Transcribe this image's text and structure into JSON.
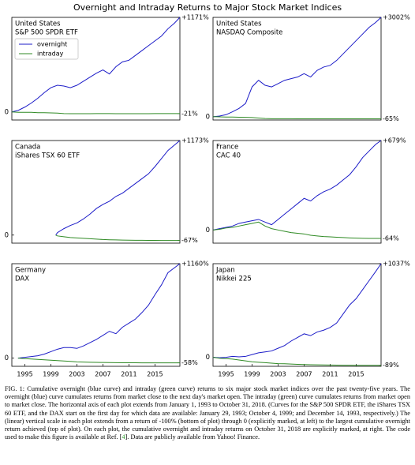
{
  "title": "Overnight and Intraday Returns to Major Stock Market Indices",
  "chart_data": [
    {
      "type": "line",
      "title": "United States",
      "subtitle": "S&P 500 SPDR ETF",
      "legend": "upper left",
      "x": [
        1993,
        1994,
        1995,
        1996,
        1997,
        1998,
        1999,
        2000,
        2001,
        2002,
        2003,
        2004,
        2005,
        2006,
        2007,
        2008,
        2009,
        2010,
        2011,
        2012,
        2013,
        2014,
        2015,
        2016,
        2017,
        2018,
        2018.83
      ],
      "series": [
        {
          "name": "overnight",
          "color": "#1c1cc8",
          "values": [
            0,
            20,
            60,
            110,
            170,
            240,
            300,
            330,
            320,
            300,
            330,
            380,
            430,
            480,
            520,
            470,
            560,
            620,
            640,
            700,
            760,
            820,
            880,
            940,
            1030,
            1100,
            1171
          ]
        },
        {
          "name": "intraday",
          "color": "#2f8a24",
          "values": [
            0,
            -5,
            -5,
            -5,
            -10,
            -10,
            -12,
            -15,
            -20,
            -22,
            -22,
            -22,
            -22,
            -20,
            -20,
            -20,
            -22,
            -22,
            -22,
            -22,
            -22,
            -22,
            -21,
            -20,
            -20,
            -20,
            -21
          ]
        }
      ],
      "xlim": [
        1993,
        2018.83
      ],
      "ylim": [
        -100,
        1171
      ],
      "yticks": [
        0
      ],
      "y2lim": [
        -100,
        1171
      ],
      "y2ticks": [
        {
          "value": 1171,
          "label": "+1171%"
        },
        {
          "value": -21,
          "label": "-21%"
        }
      ]
    },
    {
      "type": "line",
      "title": "United States",
      "subtitle": "NASDAQ Composite",
      "x": [
        1993,
        1994,
        1995,
        1996,
        1997,
        1998,
        1999,
        2000,
        2001,
        2002,
        2003,
        2004,
        2005,
        2006,
        2007,
        2008,
        2009,
        2010,
        2011,
        2012,
        2013,
        2014,
        2015,
        2016,
        2017,
        2018,
        2018.83
      ],
      "series": [
        {
          "name": "overnight",
          "color": "#1c1cc8",
          "values": [
            0,
            20,
            60,
            150,
            250,
            400,
            900,
            1100,
            950,
            900,
            1000,
            1100,
            1150,
            1200,
            1300,
            1200,
            1400,
            1500,
            1550,
            1700,
            1900,
            2100,
            2300,
            2500,
            2700,
            2850,
            3002
          ]
        },
        {
          "name": "intraday",
          "color": "#2f8a24",
          "values": [
            0,
            -5,
            -10,
            -10,
            -15,
            -20,
            -25,
            -40,
            -55,
            -60,
            -60,
            -62,
            -62,
            -63,
            -63,
            -64,
            -64,
            -64,
            -64,
            -65,
            -65,
            -65,
            -65,
            -65,
            -65,
            -65,
            -65
          ]
        }
      ],
      "xlim": [
        1993,
        2018.83
      ],
      "ylim": [
        -100,
        3002
      ],
      "yticks": [
        0
      ],
      "y2lim": [
        -100,
        3002
      ],
      "y2ticks": [
        {
          "value": 3002,
          "label": "+3002%"
        },
        {
          "value": -65,
          "label": "-65%"
        }
      ]
    },
    {
      "type": "line",
      "title": "Canada",
      "subtitle": "iShares TSX 60 ETF",
      "x": [
        1999.75,
        2000,
        2001,
        2002,
        2003,
        2004,
        2005,
        2006,
        2007,
        2008,
        2009,
        2010,
        2011,
        2012,
        2013,
        2014,
        2015,
        2016,
        2017,
        2018.83
      ],
      "series": [
        {
          "name": "overnight",
          "color": "#1c1cc8",
          "values": [
            0,
            30,
            80,
            120,
            150,
            200,
            260,
            330,
            380,
            420,
            480,
            520,
            580,
            640,
            700,
            760,
            850,
            950,
            1050,
            1173
          ]
        },
        {
          "name": "intraday",
          "color": "#2f8a24",
          "values": [
            0,
            -10,
            -20,
            -30,
            -35,
            -40,
            -45,
            -50,
            -55,
            -58,
            -60,
            -62,
            -63,
            -64,
            -65,
            -66,
            -66,
            -67,
            -67,
            -67
          ]
        }
      ],
      "xlim": [
        1993,
        2018.83
      ],
      "ylim": [
        -100,
        1173
      ],
      "yticks": [
        0
      ],
      "y2lim": [
        -100,
        1173
      ],
      "y2ticks": [
        {
          "value": 1173,
          "label": "+1173%"
        },
        {
          "value": -67,
          "label": "-67%"
        }
      ]
    },
    {
      "type": "line",
      "title": "France",
      "subtitle": "CAC 40",
      "x": [
        1993,
        1994,
        1995,
        1996,
        1997,
        1998,
        1999,
        2000,
        2001,
        2002,
        2003,
        2004,
        2005,
        2006,
        2007,
        2008,
        2009,
        2010,
        2011,
        2012,
        2013,
        2014,
        2015,
        2016,
        2017,
        2018,
        2018.83
      ],
      "series": [
        {
          "name": "overnight",
          "color": "#1c1cc8",
          "values": [
            0,
            10,
            20,
            30,
            50,
            60,
            70,
            80,
            60,
            40,
            80,
            120,
            160,
            200,
            240,
            220,
            260,
            290,
            310,
            340,
            380,
            420,
            480,
            550,
            600,
            650,
            679
          ]
        },
        {
          "name": "intraday",
          "color": "#2f8a24",
          "values": [
            0,
            5,
            15,
            20,
            30,
            40,
            50,
            60,
            30,
            10,
            0,
            -10,
            -20,
            -25,
            -30,
            -40,
            -45,
            -50,
            -52,
            -55,
            -57,
            -60,
            -62,
            -63,
            -64,
            -64,
            -64
          ]
        }
      ],
      "xlim": [
        1993,
        2018.83
      ],
      "ylim": [
        -100,
        679
      ],
      "yticks": [
        0
      ],
      "y2lim": [
        -100,
        679
      ],
      "y2ticks": [
        {
          "value": 679,
          "label": "+679%"
        },
        {
          "value": -64,
          "label": "-64%"
        }
      ]
    },
    {
      "type": "line",
      "title": "Germany",
      "subtitle": "DAX",
      "x": [
        1993.95,
        1995,
        1996,
        1997,
        1998,
        1999,
        2000,
        2001,
        2002,
        2003,
        2004,
        2005,
        2006,
        2007,
        2008,
        2009,
        2010,
        2011,
        2012,
        2013,
        2014,
        2015,
        2016,
        2017,
        2018.83
      ],
      "series": [
        {
          "name": "overnight",
          "color": "#1c1cc8",
          "values": [
            0,
            10,
            20,
            30,
            50,
            80,
            110,
            130,
            130,
            120,
            150,
            190,
            230,
            280,
            330,
            300,
            380,
            430,
            480,
            560,
            650,
            780,
            900,
            1050,
            1160
          ]
        },
        {
          "name": "intraday",
          "color": "#2f8a24",
          "values": [
            0,
            -5,
            -10,
            -15,
            -20,
            -25,
            -30,
            -35,
            -40,
            -45,
            -48,
            -50,
            -52,
            -53,
            -54,
            -55,
            -56,
            -57,
            -57,
            -58,
            -58,
            -58,
            -58,
            -58,
            -58
          ]
        }
      ],
      "xlim": [
        1993,
        2018.83
      ],
      "ylim": [
        -100,
        1160
      ],
      "yticks": [
        0
      ],
      "xticks": [
        1995,
        1999,
        2003,
        2007,
        2011,
        2015
      ],
      "y2lim": [
        -100,
        1160
      ],
      "y2ticks": [
        {
          "value": 1160,
          "label": "+1160%"
        },
        {
          "value": -58,
          "label": "-58%"
        }
      ]
    },
    {
      "type": "line",
      "title": "Japan",
      "subtitle": "Nikkei 225",
      "x": [
        1993,
        1994,
        1995,
        1996,
        1997,
        1998,
        1999,
        2000,
        2001,
        2002,
        2003,
        2004,
        2005,
        2006,
        2007,
        2008,
        2009,
        2010,
        2011,
        2012,
        2013,
        2014,
        2015,
        2016,
        2017,
        2018,
        2018.83
      ],
      "series": [
        {
          "name": "overnight",
          "color": "#1c1cc8",
          "values": [
            0,
            -5,
            0,
            10,
            5,
            10,
            30,
            50,
            60,
            70,
            100,
            130,
            180,
            220,
            260,
            240,
            280,
            300,
            330,
            380,
            480,
            580,
            650,
            750,
            850,
            950,
            1037
          ]
        },
        {
          "name": "intraday",
          "color": "#2f8a24",
          "values": [
            0,
            -10,
            -15,
            -20,
            -30,
            -40,
            -50,
            -55,
            -60,
            -65,
            -70,
            -72,
            -75,
            -78,
            -80,
            -82,
            -84,
            -85,
            -86,
            -87,
            -88,
            -88,
            -89,
            -89,
            -89,
            -89,
            -89
          ]
        }
      ],
      "xlim": [
        1993,
        2018.83
      ],
      "ylim": [
        -100,
        1037
      ],
      "yticks": [
        0
      ],
      "xticks": [
        1995,
        1999,
        2003,
        2007,
        2011,
        2015
      ],
      "y2lim": [
        -100,
        1037
      ],
      "y2ticks": [
        {
          "value": 1037,
          "label": "+1037%"
        },
        {
          "value": -89,
          "label": "-89%"
        }
      ]
    }
  ],
  "caption": {
    "text": "FIG. 1: Cumulative overnight (blue curve) and intraday (green curve) returns to six major stock market indices over the past twenty-five years. The overnight (blue) curve cumulates returns from market close to the next day's market open. The intraday (green) curve cumulates returns from market open to market close. The horizontal axis of each plot extends from January 1, 1993 to October 31, 2018. (Curves for the S&P 500 SPDR ETF, the iShares TSX 60 ETF, and the DAX start on the first day for which data are available: January 29, 1993; October 4, 1999; and December 14, 1993, respectively.) The (linear) vertical scale in each plot extends from a return of -100% (bottom of plot) through 0 (explicitly marked, at left) to the largest cumulative overnight return achieved (top of plot). On each plot, the cumulative overnight and intraday returns on October 31, 2018 are explicitly marked, at right. The code used to make this figure is available at Ref. [",
    "ref": "4",
    "after": "]. Data are publicly available from Yahoo! Finance."
  }
}
